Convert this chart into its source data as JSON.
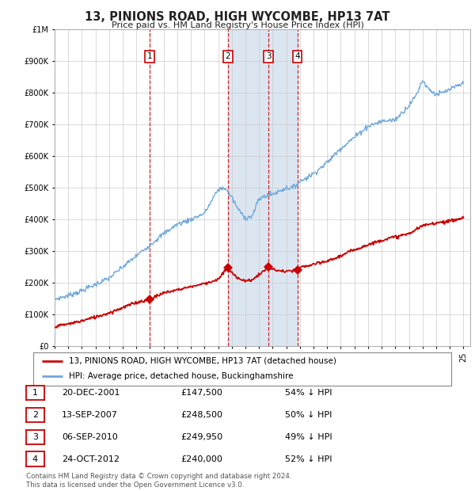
{
  "title": "13, PINIONS ROAD, HIGH WYCOMBE, HP13 7AT",
  "subtitle": "Price paid vs. HM Land Registry's House Price Index (HPI)",
  "transactions": [
    {
      "id": 1,
      "date": "20-DEC-2001",
      "year": 2001.96,
      "price": 147500,
      "hpi_pct": "54% ↓ HPI"
    },
    {
      "id": 2,
      "date": "13-SEP-2007",
      "year": 2007.7,
      "price": 248500,
      "hpi_pct": "50% ↓ HPI"
    },
    {
      "id": 3,
      "date": "06-SEP-2010",
      "year": 2010.69,
      "price": 249950,
      "hpi_pct": "49% ↓ HPI"
    },
    {
      "id": 4,
      "date": "24-OCT-2012",
      "year": 2012.81,
      "price": 240000,
      "hpi_pct": "52% ↓ HPI"
    }
  ],
  "hpi_line_color": "#6fa8dc",
  "price_line_color": "#cc0000",
  "background_color": "#ffffff",
  "plot_bg_color": "#ffffff",
  "grid_color": "#cccccc",
  "highlight_bg": "#dce6f1",
  "ylim": [
    0,
    1000000
  ],
  "xlim_start": 1995,
  "xlim_end": 2025.5,
  "footer": "Contains HM Land Registry data © Crown copyright and database right 2024.\nThis data is licensed under the Open Government Licence v3.0.",
  "legend_label_red": "13, PINIONS ROAD, HIGH WYCOMBE, HP13 7AT (detached house)",
  "legend_label_blue": "HPI: Average price, detached house, Buckinghamshire",
  "hpi_anchor_years": [
    1995,
    1996,
    1997,
    1998,
    1999,
    2000,
    2001,
    2002,
    2003,
    2004,
    2005,
    2006,
    2007,
    2007.5,
    2008,
    2008.5,
    2009,
    2009.5,
    2010,
    2010.5,
    2011,
    2011.5,
    2012,
    2012.5,
    2013,
    2014,
    2015,
    2016,
    2017,
    2018,
    2019,
    2020,
    2021,
    2021.5,
    2022,
    2022.5,
    2023,
    2023.5,
    2024,
    2024.5,
    2025
  ],
  "hpi_anchor_vals": [
    148000,
    160000,
    175000,
    195000,
    215000,
    250000,
    285000,
    320000,
    355000,
    385000,
    400000,
    420000,
    495000,
    500000,
    470000,
    430000,
    405000,
    410000,
    465000,
    475000,
    480000,
    490000,
    500000,
    500000,
    520000,
    545000,
    580000,
    625000,
    660000,
    695000,
    710000,
    715000,
    760000,
    790000,
    840000,
    810000,
    795000,
    800000,
    810000,
    820000,
    830000
  ],
  "red_anchor_years": [
    1995,
    1996,
    1997,
    1998,
    1999,
    2000,
    2001,
    2001.96,
    2002.5,
    2003,
    2004,
    2005,
    2006,
    2007,
    2007.7,
    2008,
    2008.5,
    2009,
    2009.5,
    2010,
    2010.69,
    2011,
    2011.5,
    2012,
    2012.81,
    2013,
    2014,
    2015,
    2016,
    2017,
    2018,
    2019,
    2020,
    2021,
    2022,
    2023,
    2024,
    2025
  ],
  "red_anchor_vals": [
    62000,
    70000,
    80000,
    92000,
    105000,
    122000,
    138000,
    147500,
    158000,
    168000,
    178000,
    188000,
    198000,
    210000,
    248500,
    230000,
    215000,
    205000,
    210000,
    225000,
    249950,
    242000,
    238000,
    235000,
    240000,
    248000,
    258000,
    268000,
    285000,
    305000,
    320000,
    335000,
    345000,
    355000,
    380000,
    390000,
    395000,
    405000
  ]
}
